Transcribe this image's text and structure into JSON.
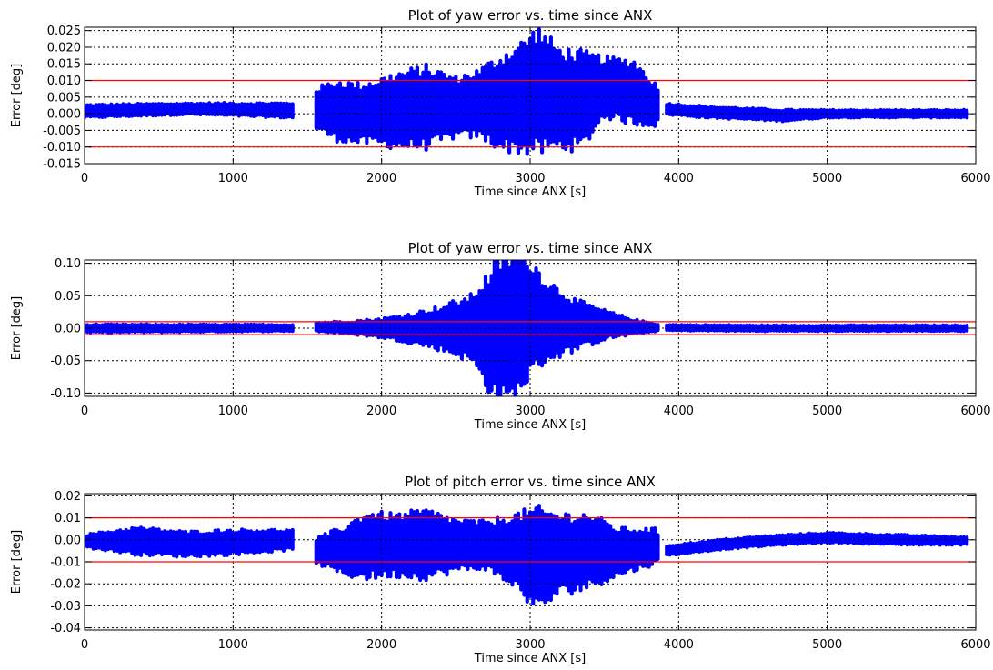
{
  "chart_data": [
    {
      "type": "scatter",
      "title": "Plot of yaw error vs. time since ANX",
      "xlabel": "Time since ANX [s]",
      "ylabel": "Error [deg]",
      "xlim": [
        0,
        6000
      ],
      "ylim": [
        -0.015,
        0.026
      ],
      "xticks": [
        0,
        1000,
        2000,
        3000,
        4000,
        5000,
        6000
      ],
      "xtick_labels": [
        "0",
        "1000",
        "2000",
        "3000",
        "4000",
        "5000",
        "6000"
      ],
      "yticks": [
        -0.015,
        -0.01,
        -0.005,
        0.0,
        0.005,
        0.01,
        0.015,
        0.02,
        0.025
      ],
      "ytick_labels": [
        "-0.015",
        "-0.010",
        "-0.005",
        "0.000",
        "0.005",
        "0.010",
        "0.015",
        "0.020",
        "0.025"
      ],
      "grid": true,
      "threshold_lines": [
        0.01,
        -0.01
      ],
      "series_color": "#0000ff",
      "threshold_color": "#ff0000",
      "envelope": {
        "x": [
          0,
          700,
          1400,
          1560,
          1700,
          1850,
          1950,
          2100,
          2300,
          2500,
          2650,
          2800,
          2950,
          3050,
          3200,
          3350,
          3500,
          3700,
          3850,
          3900,
          4200,
          4700,
          5000,
          5500,
          5950
        ],
        "upper": [
          0.0025,
          0.003,
          0.003,
          0.007,
          0.009,
          0.008,
          0.009,
          0.011,
          0.013,
          0.01,
          0.012,
          0.016,
          0.02,
          0.024,
          0.018,
          0.017,
          0.016,
          0.015,
          0.008,
          0.003,
          0.002,
          0.001,
          0.001,
          0.001,
          0.001
        ],
        "lower": [
          -0.001,
          0.0,
          -0.001,
          -0.004,
          -0.007,
          -0.008,
          -0.008,
          -0.009,
          -0.009,
          -0.006,
          -0.006,
          -0.009,
          -0.01,
          -0.01,
          -0.009,
          -0.009,
          0.0,
          -0.002,
          -0.003,
          0.0,
          -0.001,
          -0.002,
          -0.001,
          -0.001,
          -0.001
        ]
      },
      "gaps": [
        [
          1400,
          1560
        ],
        [
          3870,
          3910
        ]
      ]
    },
    {
      "type": "scatter",
      "title": "Plot of yaw error vs. time since ANX",
      "xlabel": "Time since ANX [s]",
      "ylabel": "Error [deg]",
      "xlim": [
        0,
        6000
      ],
      "ylim": [
        -0.105,
        0.105
      ],
      "xticks": [
        0,
        1000,
        2000,
        3000,
        4000,
        5000,
        6000
      ],
      "xtick_labels": [
        "0",
        "1000",
        "2000",
        "3000",
        "4000",
        "5000",
        "6000"
      ],
      "yticks": [
        -0.1,
        -0.05,
        0.0,
        0.05,
        0.1
      ],
      "ytick_labels": [
        "-0.10",
        "-0.05",
        "0.00",
        "0.05",
        "0.10"
      ],
      "grid": true,
      "threshold_lines": [
        0.01,
        -0.01
      ],
      "series_color": "#0000ff",
      "threshold_color": "#ff0000",
      "envelope": {
        "x": [
          0,
          700,
          1400,
          1560,
          1800,
          2000,
          2200,
          2400,
          2600,
          2700,
          2800,
          2900,
          3000,
          3100,
          3300,
          3500,
          3700,
          3850,
          3900,
          4500,
          5000,
          5950
        ],
        "upper": [
          0.005,
          0.005,
          0.005,
          0.008,
          0.01,
          0.013,
          0.02,
          0.03,
          0.045,
          0.07,
          0.1,
          0.105,
          0.1,
          0.07,
          0.04,
          0.025,
          0.012,
          0.006,
          0.005,
          0.004,
          0.004,
          0.004
        ],
        "lower": [
          -0.006,
          -0.005,
          -0.004,
          -0.004,
          -0.008,
          -0.013,
          -0.02,
          -0.03,
          -0.045,
          -0.08,
          -0.105,
          -0.1,
          -0.065,
          -0.045,
          -0.03,
          -0.015,
          -0.008,
          -0.004,
          -0.003,
          -0.004,
          -0.004,
          -0.004
        ]
      },
      "gaps": [
        [
          1400,
          1560
        ],
        [
          3870,
          3910
        ]
      ]
    },
    {
      "type": "scatter",
      "title": "Plot of pitch error vs. time since ANX",
      "xlabel": "Time since ANX [s]",
      "ylabel": "Error [deg]",
      "xlim": [
        0,
        6000
      ],
      "ylim": [
        -0.041,
        0.021
      ],
      "xticks": [
        0,
        1000,
        2000,
        3000,
        4000,
        5000,
        6000
      ],
      "xtick_labels": [
        "0",
        "1000",
        "2000",
        "3000",
        "4000",
        "5000",
        "6000"
      ],
      "yticks": [
        -0.04,
        -0.03,
        -0.02,
        -0.01,
        0.0,
        0.01,
        0.02
      ],
      "ytick_labels": [
        "-0.04",
        "-0.03",
        "-0.02",
        "-0.01",
        "0.00",
        "0.01",
        "0.02"
      ],
      "grid": true,
      "threshold_lines": [
        0.01,
        -0.01
      ],
      "series_color": "#0000ff",
      "threshold_color": "#ff0000",
      "envelope": {
        "x": [
          0,
          350,
          700,
          1000,
          1400,
          1560,
          1750,
          1900,
          2100,
          2300,
          2500,
          2700,
          2900,
          3050,
          3200,
          3400,
          3600,
          3850,
          3900,
          4300,
          4700,
          5000,
          5500,
          5950
        ],
        "upper": [
          0.002,
          0.005,
          0.003,
          0.004,
          0.004,
          0.0,
          0.005,
          0.011,
          0.01,
          0.012,
          0.008,
          0.007,
          0.01,
          0.012,
          0.01,
          0.01,
          0.004,
          0.004,
          -0.003,
          0.0,
          0.002,
          0.003,
          0.002,
          0.001
        ],
        "lower": [
          -0.003,
          -0.006,
          -0.007,
          -0.006,
          -0.004,
          -0.01,
          -0.015,
          -0.016,
          -0.015,
          -0.016,
          -0.013,
          -0.012,
          -0.02,
          -0.03,
          -0.023,
          -0.02,
          -0.015,
          -0.01,
          -0.007,
          -0.004,
          -0.002,
          -0.001,
          -0.002,
          -0.002
        ]
      },
      "gaps": [
        [
          1400,
          1560
        ],
        [
          3870,
          3910
        ]
      ]
    }
  ]
}
